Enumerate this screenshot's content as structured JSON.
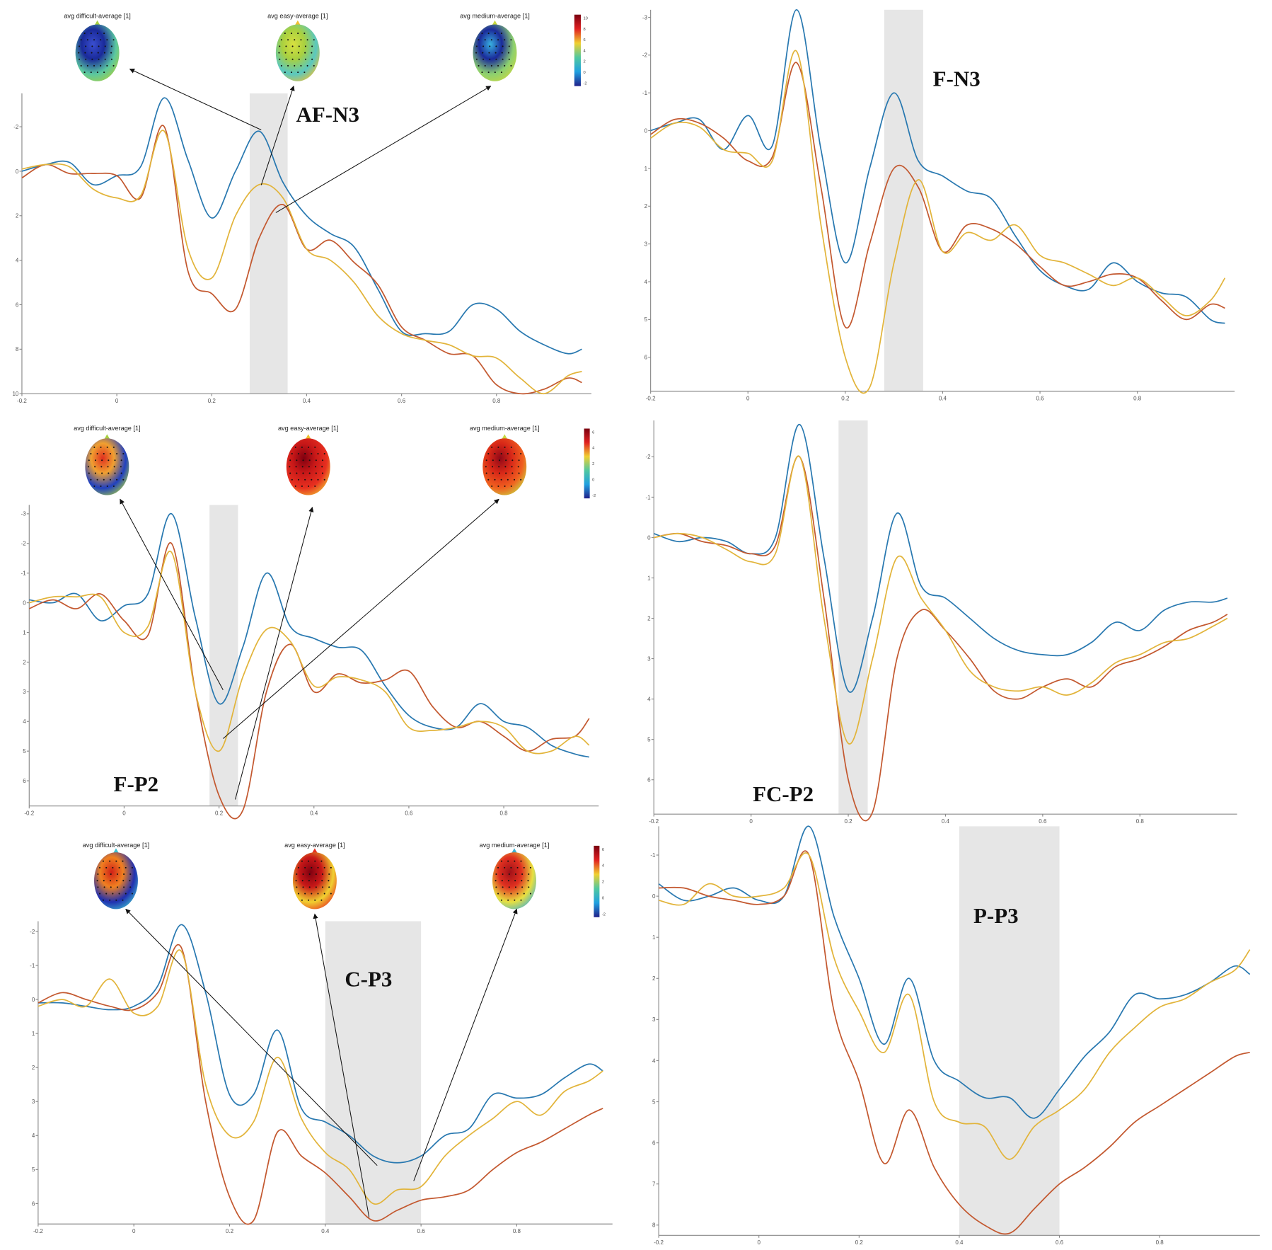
{
  "colors": {
    "difficult": "#2878b0",
    "medium": "#c3582f",
    "easy": "#e2b43a",
    "shade": "#e6e6e6",
    "axis": "#8a8a8a"
  },
  "topomap_labels": [
    "avg difficult-average [1]",
    "avg easy-average [1]",
    "avg medium-average [1]"
  ],
  "chart_data": [
    {
      "type": "line",
      "label": "AF-N3",
      "xlim": [
        -0.2,
        1.0
      ],
      "ylim": [
        -3.5,
        10
      ],
      "y_inverted": true,
      "xticks": [
        "-0.2",
        "0",
        "0.2",
        "0.4",
        "0.6",
        "0.8"
      ],
      "yticks": [
        "-2",
        "0",
        "2",
        "4",
        "6",
        "8",
        "10"
      ],
      "shaded_window": [
        0.28,
        0.36
      ],
      "grid": false,
      "colorbar_ticks": [
        "10",
        "8",
        "6",
        "4",
        "2",
        "0",
        "-2"
      ],
      "topomaps": [
        {
          "colors": [
            "#3a4fd0",
            "#1a2a9a",
            "#5ac8a0",
            "#a8d040"
          ]
        },
        {
          "colors": [
            "#d8e040",
            "#a8d040",
            "#5ac8c0",
            "#f0c030"
          ]
        },
        {
          "colors": [
            "#38b0e0",
            "#1a2a9a",
            "#8cd070",
            "#c8d840"
          ]
        }
      ],
      "x": [
        -0.2,
        -0.15,
        -0.1,
        -0.05,
        0,
        0.05,
        0.1,
        0.15,
        0.2,
        0.25,
        0.3,
        0.35,
        0.4,
        0.45,
        0.5,
        0.55,
        0.6,
        0.65,
        0.7,
        0.75,
        0.8,
        0.85,
        0.9,
        0.95,
        0.98
      ],
      "series": [
        {
          "key": "difficult",
          "values": [
            0,
            -0.3,
            -0.4,
            0.6,
            0.2,
            -0.2,
            -3.3,
            -0.5,
            2.1,
            0,
            -1.8,
            0.5,
            2,
            2.8,
            3.4,
            5.3,
            7.2,
            7.3,
            7.2,
            6,
            6.2,
            7.2,
            7.8,
            8.2,
            8
          ]
        },
        {
          "key": "medium",
          "values": [
            0.3,
            -0.3,
            0.1,
            0.1,
            0.2,
            1.2,
            -2,
            4.5,
            5.5,
            6.2,
            3,
            1.5,
            3.5,
            3.1,
            4.1,
            5.1,
            7,
            7.6,
            8.2,
            8.3,
            9.6,
            10,
            9.8,
            9.3,
            9.5
          ]
        },
        {
          "key": "easy",
          "values": [
            -0.1,
            -0.3,
            -0.2,
            0.8,
            1.2,
            1.1,
            -1.8,
            3.5,
            4.8,
            2,
            0.6,
            1.2,
            3.5,
            4,
            5,
            6.5,
            7.3,
            7.6,
            7.8,
            8.3,
            8.4,
            9.3,
            10,
            9.2,
            9
          ]
        }
      ]
    },
    {
      "type": "line",
      "label": "F-N3",
      "xlim": [
        -0.2,
        1.0
      ],
      "ylim": [
        -3.2,
        6.9
      ],
      "y_inverted": true,
      "xticks": [
        "-0.2",
        "0",
        "0.2",
        "0.4",
        "0.6",
        "0.8"
      ],
      "yticks": [
        "-3",
        "-2",
        "-1",
        "0",
        "1",
        "2",
        "3",
        "4",
        "5",
        "6"
      ],
      "shaded_window": [
        0.28,
        0.36
      ],
      "grid": false,
      "x": [
        -0.2,
        -0.15,
        -0.1,
        -0.05,
        0,
        0.05,
        0.1,
        0.15,
        0.2,
        0.25,
        0.3,
        0.35,
        0.4,
        0.45,
        0.5,
        0.55,
        0.6,
        0.65,
        0.7,
        0.75,
        0.8,
        0.85,
        0.9,
        0.95,
        0.98
      ],
      "series": [
        {
          "key": "difficult",
          "values": [
            0,
            -0.2,
            -0.3,
            0.5,
            -0.4,
            0.4,
            -3.2,
            0.5,
            3.5,
            1,
            -1,
            0.8,
            1.2,
            1.6,
            1.8,
            2.8,
            3.7,
            4.1,
            4.2,
            3.5,
            4,
            4.3,
            4.4,
            5,
            5.1
          ]
        },
        {
          "key": "medium",
          "values": [
            0.1,
            -0.3,
            -0.2,
            0.2,
            0.8,
            0.7,
            -1.8,
            1.5,
            5.2,
            3,
            1,
            1.5,
            3.2,
            2.5,
            2.6,
            3,
            3.6,
            4.1,
            4,
            3.8,
            3.9,
            4.5,
            5,
            4.6,
            4.7
          ]
        },
        {
          "key": "easy",
          "values": [
            0.2,
            -0.2,
            -0.1,
            0.5,
            0.6,
            0.8,
            -2.1,
            2.5,
            6,
            6.8,
            3.5,
            1.3,
            3.2,
            2.7,
            2.9,
            2.5,
            3.3,
            3.5,
            3.8,
            4.1,
            3.9,
            4.4,
            4.9,
            4.5,
            3.9
          ]
        }
      ]
    },
    {
      "type": "line",
      "label": "F-P2",
      "xlim": [
        -0.2,
        1.0
      ],
      "ylim": [
        -3.3,
        6.85
      ],
      "y_inverted": true,
      "xticks": [
        "-0.2",
        "0",
        "0.2",
        "0.4",
        "0.6",
        "0.8"
      ],
      "yticks": [
        "-3",
        "-2",
        "-1",
        "0",
        "1",
        "2",
        "3",
        "4",
        "5",
        "6"
      ],
      "shaded_window": [
        0.18,
        0.24
      ],
      "grid": false,
      "colorbar_ticks": [
        "6",
        "4",
        "2",
        "0",
        "-2"
      ],
      "topomaps": [
        {
          "colors": [
            "#e03020",
            "#f0a030",
            "#2040c0",
            "#a8d040"
          ]
        },
        {
          "colors": [
            "#800010",
            "#c81818",
            "#e83020",
            "#f0c030"
          ]
        },
        {
          "colors": [
            "#900818",
            "#d82818",
            "#f06020",
            "#c8d840"
          ]
        }
      ],
      "x": [
        -0.2,
        -0.15,
        -0.1,
        -0.05,
        0,
        0.05,
        0.1,
        0.15,
        0.2,
        0.25,
        0.3,
        0.35,
        0.4,
        0.45,
        0.5,
        0.55,
        0.6,
        0.65,
        0.7,
        0.75,
        0.8,
        0.85,
        0.9,
        0.95,
        0.98
      ],
      "series": [
        {
          "key": "difficult",
          "values": [
            -0.1,
            0,
            -0.3,
            0.6,
            0.1,
            -0.3,
            -3,
            0.5,
            3.4,
            1.5,
            -1,
            0.8,
            1.2,
            1.5,
            1.6,
            2.8,
            3.8,
            4.2,
            4.2,
            3.4,
            4,
            4.2,
            4.8,
            5.1,
            5.2
          ]
        },
        {
          "key": "medium",
          "values": [
            0.2,
            -0.1,
            0.2,
            -0.3,
            0.6,
            1.1,
            -2,
            3,
            6.5,
            7,
            3,
            1.4,
            3,
            2.4,
            2.7,
            2.6,
            2.3,
            3.5,
            4.2,
            4,
            4.5,
            5,
            4.6,
            4.5,
            3.9
          ]
        },
        {
          "key": "easy",
          "values": [
            0,
            -0.2,
            -0.2,
            -0.2,
            1,
            0.8,
            -1.7,
            3,
            5,
            2.5,
            0.9,
            1.3,
            2.8,
            2.5,
            2.6,
            3,
            4.2,
            4.3,
            4.2,
            4,
            4.2,
            5,
            5,
            4.5,
            4.8
          ]
        }
      ]
    },
    {
      "type": "line",
      "label": "FC-P2",
      "xlim": [
        -0.2,
        1.0
      ],
      "ylim": [
        -2.9,
        6.85
      ],
      "y_inverted": true,
      "xticks": [
        "-0.2",
        "0",
        "0.2",
        "0.4",
        "0.6",
        "0.8"
      ],
      "yticks": [
        "-2",
        "-1",
        "0",
        "1",
        "2",
        "3",
        "4",
        "5",
        "6"
      ],
      "shaded_window": [
        0.18,
        0.24
      ],
      "grid": false,
      "x": [
        -0.2,
        -0.15,
        -0.1,
        -0.05,
        0,
        0.05,
        0.1,
        0.15,
        0.2,
        0.25,
        0.3,
        0.35,
        0.4,
        0.45,
        0.5,
        0.55,
        0.6,
        0.65,
        0.7,
        0.75,
        0.8,
        0.85,
        0.9,
        0.95,
        0.98
      ],
      "series": [
        {
          "key": "difficult",
          "values": [
            -0.1,
            0.1,
            0,
            0.1,
            0.4,
            0,
            -2.8,
            0.5,
            3.8,
            2,
            -0.6,
            1.2,
            1.5,
            2,
            2.5,
            2.8,
            2.9,
            2.9,
            2.6,
            2.1,
            2.3,
            1.8,
            1.6,
            1.6,
            1.5
          ]
        },
        {
          "key": "medium",
          "values": [
            0,
            -0.1,
            0.1,
            0.2,
            0.4,
            0.2,
            -2,
            1.5,
            6,
            6.8,
            3,
            1.8,
            2.3,
            3,
            3.8,
            4,
            3.7,
            3.5,
            3.7,
            3.2,
            3,
            2.7,
            2.3,
            2.1,
            1.9
          ]
        },
        {
          "key": "easy",
          "values": [
            0,
            -0.1,
            0,
            0.3,
            0.6,
            0.4,
            -2,
            2,
            5.1,
            3,
            0.5,
            1.5,
            2.3,
            3.3,
            3.7,
            3.8,
            3.7,
            3.9,
            3.6,
            3.1,
            2.9,
            2.6,
            2.5,
            2.2,
            2
          ]
        }
      ]
    },
    {
      "type": "line",
      "label": "C-P3",
      "xlim": [
        -0.2,
        1.0
      ],
      "ylim": [
        -2.3,
        6.6
      ],
      "y_inverted": true,
      "xticks": [
        "-0.2",
        "0",
        "0.2",
        "0.4",
        "0.6",
        "0.8"
      ],
      "yticks": [
        "-2",
        "-1",
        "0",
        "1",
        "2",
        "3",
        "4",
        "5",
        "6"
      ],
      "shaded_window": [
        0.4,
        0.6
      ],
      "grid": false,
      "colorbar_ticks": [
        "6",
        "4",
        "2",
        "0",
        "-2"
      ],
      "topomaps": [
        {
          "colors": [
            "#d02018",
            "#f08020",
            "#2030b0",
            "#40c0d0"
          ]
        },
        {
          "colors": [
            "#800010",
            "#c81818",
            "#f0d030",
            "#e83020"
          ]
        },
        {
          "colors": [
            "#a01018",
            "#e03020",
            "#e8e040",
            "#40b0d0"
          ]
        }
      ],
      "x": [
        -0.2,
        -0.15,
        -0.1,
        -0.05,
        0,
        0.05,
        0.1,
        0.15,
        0.2,
        0.25,
        0.3,
        0.35,
        0.4,
        0.45,
        0.5,
        0.55,
        0.6,
        0.65,
        0.7,
        0.75,
        0.8,
        0.85,
        0.9,
        0.95,
        0.98
      ],
      "series": [
        {
          "key": "difficult",
          "values": [
            0.1,
            0.1,
            0.2,
            0.3,
            0.2,
            -0.4,
            -2.2,
            -0.2,
            2.8,
            2.8,
            0.9,
            3.2,
            3.6,
            4,
            4.6,
            4.8,
            4.6,
            4,
            3.8,
            2.8,
            2.9,
            2.8,
            2.3,
            1.9,
            2.1
          ]
        },
        {
          "key": "medium",
          "values": [
            0.1,
            -0.2,
            0,
            0.2,
            0.3,
            -0.2,
            -1.5,
            3,
            5.8,
            6.5,
            3.9,
            4.6,
            5.1,
            5.8,
            6.5,
            6.2,
            5.9,
            5.8,
            5.6,
            5,
            4.5,
            4.2,
            3.8,
            3.4,
            3.2
          ]
        },
        {
          "key": "easy",
          "values": [
            0.2,
            0,
            0.2,
            -0.6,
            0.4,
            0.2,
            -1.4,
            2.5,
            4,
            3.6,
            1.7,
            3.5,
            4.5,
            5,
            6,
            5.6,
            5.5,
            4.6,
            4,
            3.5,
            3,
            3.4,
            2.7,
            2.4,
            2.1
          ]
        }
      ]
    },
    {
      "type": "line",
      "label": "P-P3",
      "xlim": [
        -0.2,
        1.0
      ],
      "ylim": [
        -1.7,
        8.25
      ],
      "y_inverted": true,
      "xticks": [
        "-0.2",
        "0",
        "0.2",
        "0.4",
        "0.6",
        "0.8"
      ],
      "yticks": [
        "-1",
        "0",
        "1",
        "2",
        "3",
        "4",
        "5",
        "6",
        "7",
        "8"
      ],
      "shaded_window": [
        0.4,
        0.6
      ],
      "grid": false,
      "x": [
        -0.2,
        -0.15,
        -0.1,
        -0.05,
        0,
        0.05,
        0.1,
        0.15,
        0.2,
        0.25,
        0.3,
        0.35,
        0.4,
        0.45,
        0.5,
        0.55,
        0.6,
        0.65,
        0.7,
        0.75,
        0.8,
        0.85,
        0.9,
        0.95,
        0.98
      ],
      "series": [
        {
          "key": "difficult",
          "values": [
            -0.3,
            0.1,
            0,
            -0.2,
            0.1,
            0,
            -1.7,
            0.5,
            2,
            3.6,
            2,
            4,
            4.5,
            4.9,
            4.9,
            5.4,
            4.7,
            3.9,
            3.3,
            2.4,
            2.5,
            2.4,
            2.1,
            1.7,
            1.9
          ]
        },
        {
          "key": "medium",
          "values": [
            -0.2,
            -0.2,
            0,
            0.1,
            0.2,
            0,
            -1,
            2.8,
            4.5,
            6.5,
            5.2,
            6.6,
            7.5,
            8,
            8.2,
            7.6,
            7,
            6.6,
            6.1,
            5.5,
            5.1,
            4.7,
            4.3,
            3.9,
            3.8
          ]
        },
        {
          "key": "easy",
          "values": [
            0.1,
            0.2,
            -0.3,
            0,
            0,
            -0.2,
            -1,
            1.5,
            2.8,
            3.8,
            2.4,
            5,
            5.5,
            5.6,
            6.4,
            5.6,
            5.2,
            4.7,
            3.8,
            3.2,
            2.7,
            2.5,
            2.1,
            1.8,
            1.3
          ]
        }
      ]
    }
  ]
}
